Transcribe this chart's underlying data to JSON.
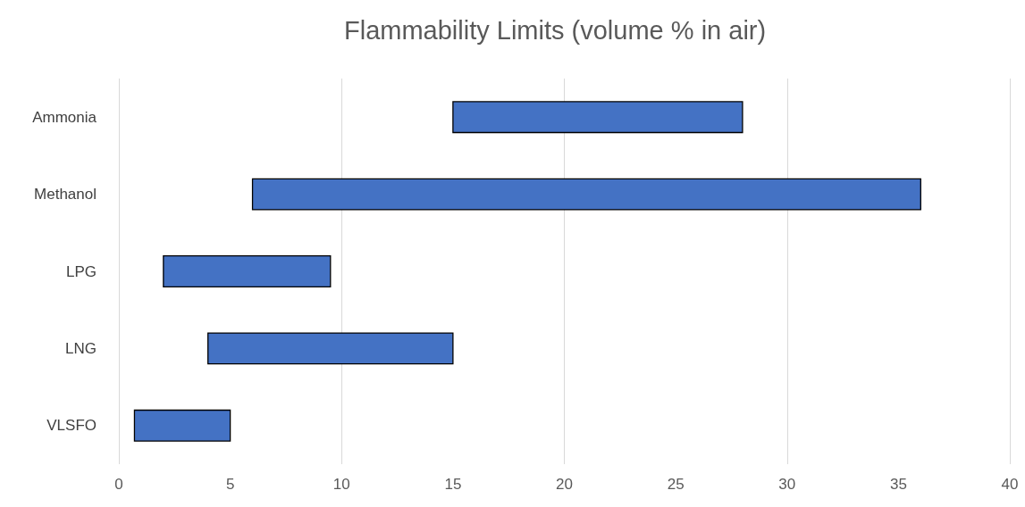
{
  "chart_data": {
    "type": "bar",
    "orientation": "horizontal",
    "title": "Flammability Limits (volume % in air)",
    "categories": [
      "Ammonia",
      "Methanol",
      "LPG",
      "LNG",
      "VLSFO"
    ],
    "base": [
      15,
      6,
      2,
      4,
      0.7
    ],
    "values": [
      13,
      30,
      7.5,
      11,
      4.3
    ],
    "color": "#4472c4",
    "xlim": [
      0,
      40
    ],
    "xticks": [
      0,
      5,
      10,
      15,
      20,
      25,
      30,
      35,
      40
    ],
    "grid": "x"
  }
}
